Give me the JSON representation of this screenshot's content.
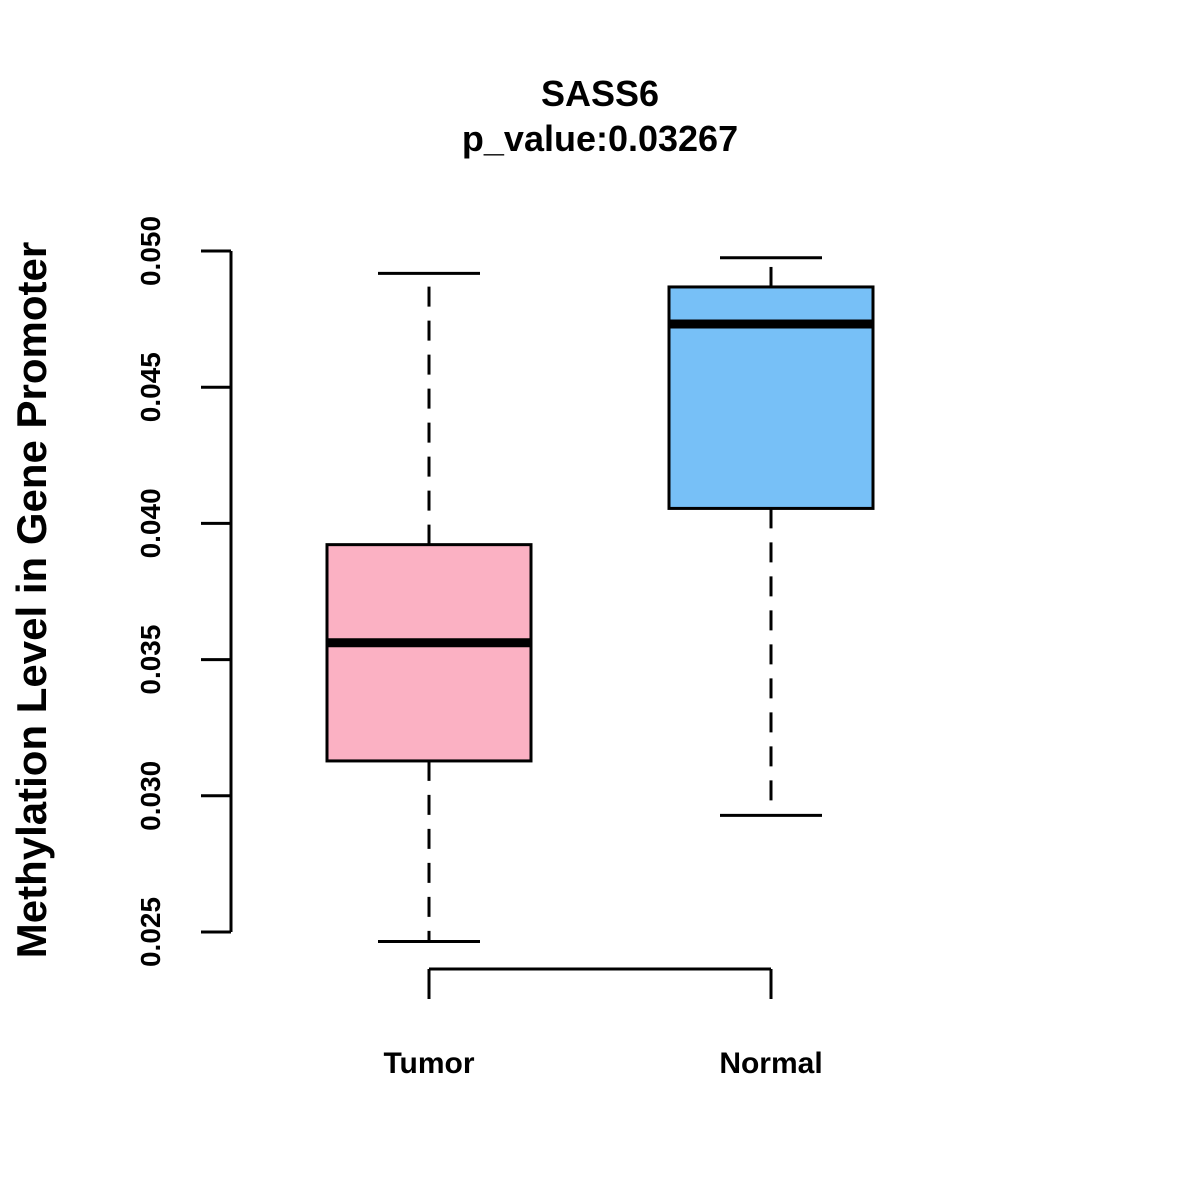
{
  "chart_data": {
    "type": "boxplot",
    "title": "SASS6",
    "subtitle": "p_value:0.03267",
    "xlabel": "",
    "ylabel": "Methylation Level in Gene Promoter",
    "ylim": [
      0.025,
      0.05
    ],
    "yticks": [
      "0.025",
      "0.030",
      "0.035",
      "0.040",
      "0.045",
      "0.050"
    ],
    "yticks_values": [
      0.025,
      0.03,
      0.035,
      0.04,
      0.045,
      0.05
    ],
    "categories": [
      "Tumor",
      "Normal"
    ],
    "boxes": [
      {
        "name": "Tumor",
        "whisker_low": 0.02465,
        "q1": 0.03128,
        "median": 0.03562,
        "q3": 0.03922,
        "whisker_high": 0.04918,
        "color": "#FBB1C3"
      },
      {
        "name": "Normal",
        "whisker_low": 0.02928,
        "q1": 0.04055,
        "median": 0.04732,
        "q3": 0.04868,
        "whisker_high": 0.04975,
        "color": "#77C0F7"
      }
    ],
    "grid": false
  }
}
